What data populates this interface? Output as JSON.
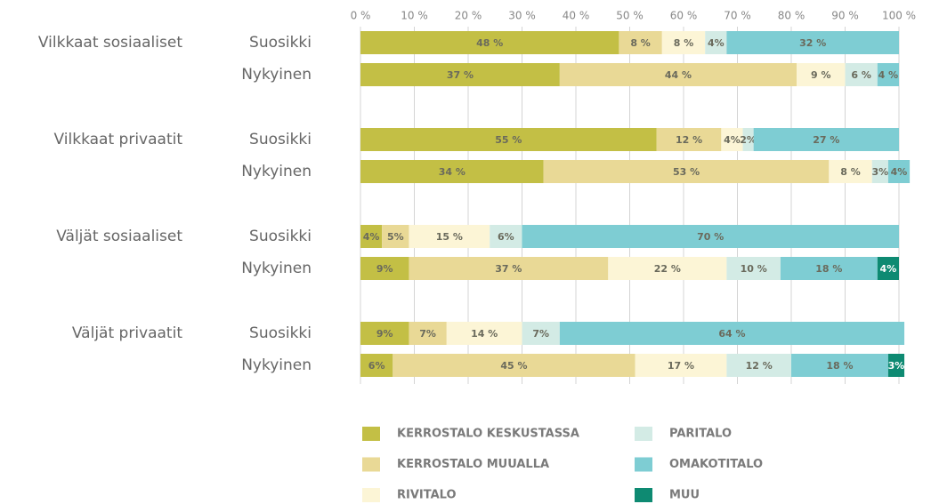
{
  "chart_data": {
    "type": "stacked_barh",
    "groups": [
      "Vilkkaat sosiaaliset",
      "Vilkkaat privaatit",
      "Väljät sosiaaliset",
      "Väljät privaatit"
    ],
    "categories": [
      "Suosikki",
      "Nykyinen",
      "Suosikki",
      "Nykyinen",
      "Suosikki",
      "Nykyinen",
      "Suosikki",
      "Nykyinen"
    ],
    "series": [
      {
        "name": "KERROSTALO KESKUSTASSA",
        "color": "#c3bf45",
        "values": [
          48,
          37,
          55,
          34,
          4,
          9,
          9,
          6
        ],
        "value_labels": [
          "48 %",
          "37 %",
          "55 %",
          "34 %",
          "4%",
          "9%",
          "9%",
          "6%"
        ]
      },
      {
        "name": "KERROSTALO MUUALLA",
        "color": "#e9d996",
        "values": [
          8,
          44,
          12,
          53,
          5,
          37,
          7,
          45
        ],
        "value_labels": [
          "8 %",
          "44 %",
          "12 %",
          "53 %",
          "5%",
          "37 %",
          "7%",
          "45 %"
        ]
      },
      {
        "name": "RIVITALO",
        "color": "#fcf5d6",
        "values": [
          8,
          9,
          4,
          8,
          15,
          22,
          14,
          17
        ],
        "value_labels": [
          "8 %",
          "9 %",
          "4%",
          "8 %",
          "15 %",
          "22 %",
          "14 %",
          "17 %"
        ]
      },
      {
        "name": "PARITALO",
        "color": "#d3ebe5",
        "values": [
          4,
          6,
          2,
          3,
          6,
          10,
          7,
          12
        ],
        "value_labels": [
          "4%",
          "6 %",
          "2%",
          "3%",
          "6%",
          "10 %",
          "7%",
          "12 %"
        ]
      },
      {
        "name": "OMAKOTITALO",
        "color": "#7ecdd3",
        "values": [
          32,
          4,
          27,
          4,
          70,
          18,
          64,
          18
        ],
        "value_labels": [
          "32 %",
          "4 %",
          "27 %",
          "4%",
          "70 %",
          "18 %",
          "64 %",
          "18 %"
        ]
      },
      {
        "name": "MUU",
        "color": "#0e8a72",
        "values": [
          null,
          null,
          null,
          null,
          null,
          4,
          null,
          3
        ],
        "value_labels": [
          null,
          null,
          null,
          null,
          null,
          "4%",
          null,
          "3%"
        ]
      }
    ],
    "xlim": [
      0,
      100
    ],
    "xticks": [
      {
        "value": 0,
        "label": "0 %"
      },
      {
        "value": 10,
        "label": "10 %"
      },
      {
        "value": 20,
        "label": "20 %"
      },
      {
        "value": 30,
        "label": "30 %"
      },
      {
        "value": 40,
        "label": "40 %"
      },
      {
        "value": 50,
        "label": "50 %"
      },
      {
        "value": 60,
        "label": "60 %"
      },
      {
        "value": 70,
        "label": "70 %"
      },
      {
        "value": 80,
        "label": "80 %"
      },
      {
        "value": 90,
        "label": "90 %"
      },
      {
        "value": 100,
        "label": "100 %"
      }
    ],
    "grid": true
  }
}
